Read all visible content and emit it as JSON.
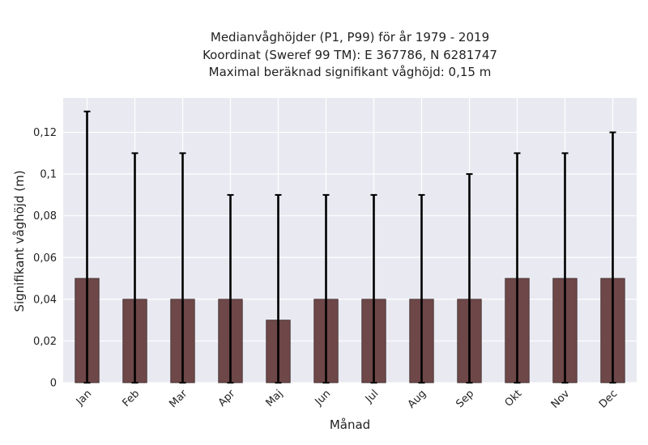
{
  "chart_data": {
    "type": "bar",
    "title_lines": [
      "Medianvåghöjder (P1, P99) för år 1979 - 2019",
      "Koordinat (Sweref 99 TM): E 367786, N 6281747",
      "Maximal beräknad signifikant våghöjd: 0,15 m"
    ],
    "xlabel": "Månad",
    "ylabel": "Signifikant våghöjd (m)",
    "categories": [
      "Jan",
      "Feb",
      "Mar",
      "Apr",
      "Maj",
      "Jun",
      "Jul",
      "Aug",
      "Sep",
      "Okt",
      "Nov",
      "Dec"
    ],
    "series": [
      {
        "values": [
          0.05,
          0.04,
          0.04,
          0.04,
          0.03,
          0.04,
          0.04,
          0.04,
          0.04,
          0.05,
          0.05,
          0.05
        ],
        "err_low": [
          0,
          0,
          0,
          0,
          0,
          0,
          0,
          0,
          0,
          0,
          0,
          0
        ],
        "err_high": [
          0.13,
          0.11,
          0.11,
          0.09,
          0.09,
          0.09,
          0.09,
          0.09,
          0.1,
          0.11,
          0.11,
          0.12
        ]
      }
    ],
    "yticks": [
      0,
      0.02,
      0.04,
      0.06,
      0.08,
      0.1,
      0.12
    ],
    "ytick_labels": [
      "0",
      "0,02",
      "0,04",
      "0,06",
      "0,08",
      "0,1",
      "0,12"
    ],
    "ylim": [
      0,
      0.1365
    ],
    "grid": true,
    "colors": {
      "bar": "#6e4748",
      "bar_edge": "#3a2a2a",
      "error": "#000000",
      "plot_bg": "#e9e9f1",
      "grid": "#ffffff"
    }
  }
}
